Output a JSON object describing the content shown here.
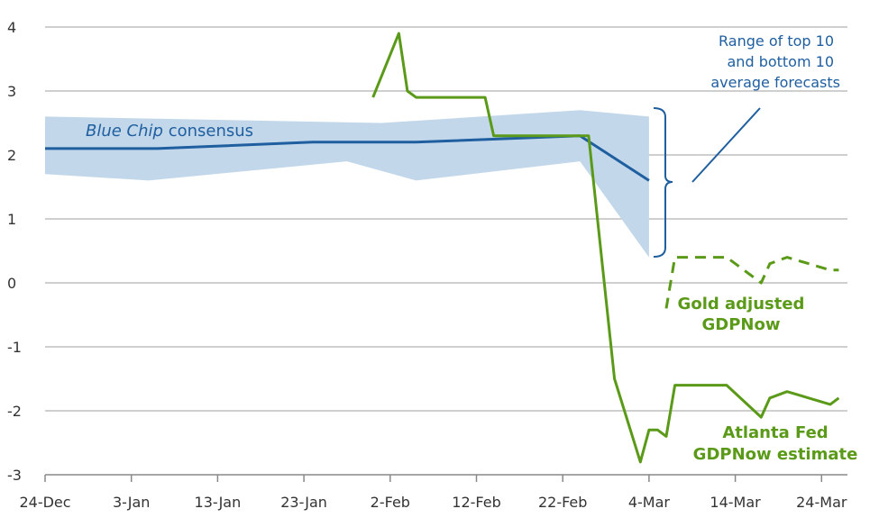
{
  "chart_data": {
    "type": "line",
    "title": "",
    "xlabel": "",
    "ylabel": "",
    "ylim": [
      -3,
      4
    ],
    "yticks": [
      "4",
      "3",
      "2",
      "1",
      "0",
      "-1",
      "-2",
      "-3"
    ],
    "xticks": [
      "24-Dec",
      "3-Jan",
      "13-Jan",
      "23-Jan",
      "2-Feb",
      "12-Feb",
      "22-Feb",
      "4-Mar",
      "14-Mar",
      "24-Mar"
    ],
    "grid": "horizontal",
    "colors": {
      "consensus": "#1f5fa0",
      "band": "#c2d8ea",
      "gdpnow": "#5a9a18",
      "axis": "#888888",
      "grid": "#bfbfbf"
    },
    "band": {
      "name": "Range of top 10 and bottom 10 average forecasts",
      "upper": [
        [
          "24-Dec",
          2.6
        ],
        [
          "1-Feb",
          2.5
        ],
        [
          "24-Feb",
          2.7
        ],
        [
          "4-Mar",
          2.6
        ]
      ],
      "lower": [
        [
          "24-Dec",
          1.7
        ],
        [
          "5-Jan",
          1.6
        ],
        [
          "28-Jan",
          1.9
        ],
        [
          "5-Feb",
          1.6
        ],
        [
          "24-Feb",
          1.9
        ],
        [
          "4-Mar",
          0.4
        ]
      ]
    },
    "series": [
      {
        "name": "Blue Chip consensus",
        "style": "solid",
        "points": [
          [
            "24-Dec",
            2.1
          ],
          [
            "6-Jan",
            2.1
          ],
          [
            "24-Jan",
            2.2
          ],
          [
            "5-Feb",
            2.2
          ],
          [
            "24-Feb",
            2.3
          ],
          [
            "4-Mar",
            1.6
          ]
        ]
      },
      {
        "name": "Atlanta Fed GDPNow estimate",
        "style": "solid",
        "points": [
          [
            "31-Jan",
            2.9
          ],
          [
            "3-Feb",
            3.9
          ],
          [
            "4-Feb",
            3.0
          ],
          [
            "5-Feb",
            2.9
          ],
          [
            "13-Feb",
            2.9
          ],
          [
            "14-Feb",
            2.3
          ],
          [
            "25-Feb",
            2.3
          ],
          [
            "28-Feb",
            -1.5
          ],
          [
            "3-Mar",
            -2.8
          ],
          [
            "4-Mar",
            -2.3
          ],
          [
            "5-Mar",
            -2.3
          ],
          [
            "6-Mar",
            -2.4
          ],
          [
            "7-Mar",
            -1.6
          ],
          [
            "13-Mar",
            -1.6
          ],
          [
            "17-Mar",
            -2.1
          ],
          [
            "18-Mar",
            -1.8
          ],
          [
            "20-Mar",
            -1.7
          ],
          [
            "25-Mar",
            -1.9
          ],
          [
            "26-Mar",
            -1.8
          ]
        ]
      },
      {
        "name": "Gold adjusted GDPNow",
        "style": "dashed",
        "points": [
          [
            "6-Mar",
            -0.4
          ],
          [
            "7-Mar",
            0.4
          ],
          [
            "13-Mar",
            0.4
          ],
          [
            "17-Mar",
            0.0
          ],
          [
            "18-Mar",
            0.3
          ],
          [
            "20-Mar",
            0.4
          ],
          [
            "25-Mar",
            0.2
          ],
          [
            "26-Mar",
            0.2
          ]
        ]
      }
    ],
    "annotations": {
      "consensus_italic": "Blue Chip",
      "consensus_rest": " consensus",
      "range": [
        "Range of top 10",
        "and bottom 10",
        "average forecasts"
      ],
      "gold": [
        "Gold adjusted",
        "GDPNow"
      ],
      "atlanta": [
        "Atlanta Fed",
        "GDPNow estimate"
      ]
    }
  }
}
